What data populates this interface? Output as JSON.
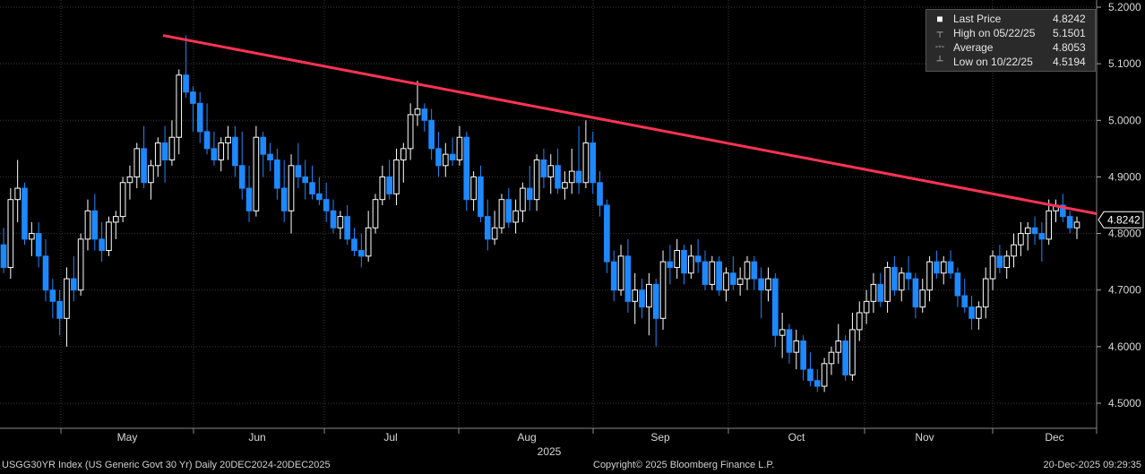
{
  "chart_data": {
    "type": "candlestick",
    "title": "USGG30YR Index (US Generic Govt 30 Yr) Daily 20DEC2024-20DEC2025",
    "ylim": [
      4.45,
      5.2
    ],
    "y_ticks": [
      "4.5000",
      "4.6000",
      "4.7000",
      "4.8000",
      "4.9000",
      "5.0000",
      "5.1000",
      "5.2000"
    ],
    "x_tick_labels": [
      "May",
      "Jun",
      "Jul",
      "Aug",
      "Sep",
      "Oct",
      "Nov",
      "Dec"
    ],
    "year_label": "2025",
    "last_price_marker": "4.8242",
    "legend": [
      {
        "symbol": "square-icon",
        "label": "Last Price",
        "value": "4.8242"
      },
      {
        "symbol": "high-icon",
        "label": "High on 05/22/25",
        "value": "5.1501"
      },
      {
        "symbol": "average-icon",
        "label": "Average",
        "value": "4.8053"
      },
      {
        "symbol": "low-icon",
        "label": "Low on 10/22/25",
        "value": "4.5194"
      }
    ],
    "trendline": {
      "start": {
        "date": "2025-05-22",
        "value": 5.15
      },
      "end": {
        "date": "2025-12-22",
        "value": 4.835
      }
    },
    "colors": {
      "up": "#ffffff",
      "down": "#1e88ff",
      "trendline": "#ff3355",
      "background": "#000000"
    },
    "candles": [
      [
        4.78,
        4.81,
        4.73,
        4.74
      ],
      [
        4.74,
        4.88,
        4.72,
        4.86
      ],
      [
        4.86,
        4.93,
        4.82,
        4.88
      ],
      [
        4.88,
        4.89,
        4.78,
        4.79
      ],
      [
        4.79,
        4.82,
        4.76,
        4.8
      ],
      [
        4.8,
        4.82,
        4.74,
        4.76
      ],
      [
        4.76,
        4.79,
        4.68,
        4.7
      ],
      [
        4.7,
        4.72,
        4.65,
        4.68
      ],
      [
        4.68,
        4.7,
        4.62,
        4.65
      ],
      [
        4.65,
        4.74,
        4.6,
        4.72
      ],
      [
        4.72,
        4.76,
        4.68,
        4.7
      ],
      [
        4.7,
        4.8,
        4.69,
        4.79
      ],
      [
        4.79,
        4.86,
        4.77,
        4.84
      ],
      [
        4.84,
        4.87,
        4.77,
        4.79
      ],
      [
        4.79,
        4.82,
        4.75,
        4.77
      ],
      [
        4.77,
        4.83,
        4.76,
        4.82
      ],
      [
        4.82,
        4.84,
        4.79,
        4.83
      ],
      [
        4.83,
        4.9,
        4.82,
        4.89
      ],
      [
        4.89,
        4.92,
        4.86,
        4.9
      ],
      [
        4.9,
        4.96,
        4.88,
        4.95
      ],
      [
        4.95,
        4.99,
        4.88,
        4.89
      ],
      [
        4.89,
        4.93,
        4.86,
        4.92
      ],
      [
        4.92,
        4.97,
        4.9,
        4.96
      ],
      [
        4.96,
        4.99,
        4.89,
        4.93
      ],
      [
        4.93,
        5.0,
        4.92,
        4.97
      ],
      [
        4.97,
        5.09,
        4.94,
        5.08
      ],
      [
        5.08,
        5.15,
        5.04,
        5.05
      ],
      [
        5.05,
        5.06,
        4.98,
        5.03
      ],
      [
        5.03,
        5.05,
        4.96,
        4.98
      ],
      [
        4.98,
        5.03,
        4.94,
        4.95
      ],
      [
        4.95,
        4.98,
        4.92,
        4.93
      ],
      [
        4.93,
        4.97,
        4.91,
        4.96
      ],
      [
        4.96,
        4.99,
        4.93,
        4.97
      ],
      [
        4.97,
        4.99,
        4.9,
        4.92
      ],
      [
        4.92,
        4.98,
        4.86,
        4.88
      ],
      [
        4.88,
        4.92,
        4.82,
        4.84
      ],
      [
        4.84,
        4.99,
        4.83,
        4.97
      ],
      [
        4.97,
        4.98,
        4.9,
        4.94
      ],
      [
        4.94,
        4.96,
        4.91,
        4.93
      ],
      [
        4.93,
        4.95,
        4.86,
        4.88
      ],
      [
        4.88,
        4.93,
        4.82,
        4.84
      ],
      [
        4.84,
        4.94,
        4.8,
        4.92
      ],
      [
        4.92,
        4.96,
        4.88,
        4.9
      ],
      [
        4.9,
        4.93,
        4.86,
        4.89
      ],
      [
        4.89,
        4.92,
        4.86,
        4.87
      ],
      [
        4.87,
        4.9,
        4.85,
        4.86
      ],
      [
        4.86,
        4.89,
        4.82,
        4.84
      ],
      [
        4.84,
        4.86,
        4.8,
        4.81
      ],
      [
        4.81,
        4.84,
        4.79,
        4.83
      ],
      [
        4.83,
        4.85,
        4.78,
        4.79
      ],
      [
        4.79,
        4.81,
        4.76,
        4.77
      ],
      [
        4.77,
        4.8,
        4.74,
        4.76
      ],
      [
        4.76,
        4.84,
        4.75,
        4.81
      ],
      [
        4.81,
        4.87,
        4.8,
        4.86
      ],
      [
        4.86,
        4.92,
        4.85,
        4.9
      ],
      [
        4.9,
        4.93,
        4.86,
        4.87
      ],
      [
        4.87,
        4.95,
        4.85,
        4.93
      ],
      [
        4.93,
        4.96,
        4.89,
        4.95
      ],
      [
        4.95,
        5.03,
        4.93,
        5.01
      ],
      [
        5.01,
        5.07,
        4.99,
        5.02
      ],
      [
        5.02,
        5.03,
        4.98,
        5.0
      ],
      [
        5.0,
        5.02,
        4.93,
        4.95
      ],
      [
        4.95,
        4.98,
        4.9,
        4.92
      ],
      [
        4.92,
        4.96,
        4.9,
        4.94
      ],
      [
        4.94,
        4.97,
        4.92,
        4.93
      ],
      [
        4.93,
        4.99,
        4.92,
        4.97
      ],
      [
        4.97,
        4.98,
        4.84,
        4.86
      ],
      [
        4.86,
        4.91,
        4.84,
        4.9
      ],
      [
        4.9,
        4.92,
        4.82,
        4.83
      ],
      [
        4.83,
        4.86,
        4.77,
        4.79
      ],
      [
        4.79,
        4.84,
        4.78,
        4.81
      ],
      [
        4.81,
        4.87,
        4.8,
        4.86
      ],
      [
        4.86,
        4.88,
        4.81,
        4.82
      ],
      [
        4.82,
        4.86,
        4.8,
        4.84
      ],
      [
        4.84,
        4.89,
        4.82,
        4.88
      ],
      [
        4.88,
        4.92,
        4.84,
        4.86
      ],
      [
        4.86,
        4.94,
        4.84,
        4.93
      ],
      [
        4.93,
        4.95,
        4.88,
        4.9
      ],
      [
        4.9,
        4.94,
        4.87,
        4.92
      ],
      [
        4.92,
        4.95,
        4.87,
        4.88
      ],
      [
        4.88,
        4.91,
        4.86,
        4.89
      ],
      [
        4.89,
        4.95,
        4.87,
        4.91
      ],
      [
        4.91,
        4.99,
        4.87,
        4.89
      ],
      [
        4.89,
        5.0,
        4.88,
        4.96
      ],
      [
        4.96,
        4.98,
        4.87,
        4.89
      ],
      [
        4.89,
        4.91,
        4.83,
        4.85
      ],
      [
        4.85,
        4.86,
        4.73,
        4.75
      ],
      [
        4.75,
        4.77,
        4.68,
        4.7
      ],
      [
        4.7,
        4.78,
        4.69,
        4.76
      ],
      [
        4.76,
        4.79,
        4.66,
        4.68
      ],
      [
        4.68,
        4.73,
        4.64,
        4.7
      ],
      [
        4.7,
        4.72,
        4.65,
        4.67
      ],
      [
        4.67,
        4.73,
        4.62,
        4.71
      ],
      [
        4.71,
        4.72,
        4.6,
        4.65
      ],
      [
        4.65,
        4.77,
        4.63,
        4.75
      ],
      [
        4.75,
        4.78,
        4.71,
        4.74
      ],
      [
        4.74,
        4.79,
        4.72,
        4.77
      ],
      [
        4.77,
        4.78,
        4.71,
        4.73
      ],
      [
        4.73,
        4.78,
        4.72,
        4.76
      ],
      [
        4.76,
        4.79,
        4.73,
        4.75
      ],
      [
        4.75,
        4.77,
        4.7,
        4.71
      ],
      [
        4.71,
        4.76,
        4.7,
        4.75
      ],
      [
        4.75,
        4.76,
        4.69,
        4.7
      ],
      [
        4.7,
        4.74,
        4.68,
        4.73
      ],
      [
        4.73,
        4.76,
        4.7,
        4.71
      ],
      [
        4.71,
        4.74,
        4.69,
        4.72
      ],
      [
        4.72,
        4.76,
        4.7,
        4.75
      ],
      [
        4.75,
        4.76,
        4.7,
        4.72
      ],
      [
        4.72,
        4.74,
        4.65,
        4.7
      ],
      [
        4.7,
        4.74,
        4.68,
        4.72
      ],
      [
        4.72,
        4.73,
        4.6,
        4.62
      ],
      [
        4.62,
        4.66,
        4.58,
        4.63
      ],
      [
        4.63,
        4.64,
        4.57,
        4.59
      ],
      [
        4.59,
        4.63,
        4.56,
        4.61
      ],
      [
        4.61,
        4.62,
        4.54,
        4.56
      ],
      [
        4.56,
        4.59,
        4.53,
        4.54
      ],
      [
        4.54,
        4.56,
        4.52,
        4.53
      ],
      [
        4.53,
        4.58,
        4.52,
        4.57
      ],
      [
        4.57,
        4.6,
        4.55,
        4.59
      ],
      [
        4.59,
        4.64,
        4.57,
        4.61
      ],
      [
        4.61,
        4.62,
        4.54,
        4.55
      ],
      [
        4.55,
        4.66,
        4.54,
        4.63
      ],
      [
        4.63,
        4.68,
        4.61,
        4.66
      ],
      [
        4.66,
        4.7,
        4.64,
        4.68
      ],
      [
        4.68,
        4.73,
        4.66,
        4.71
      ],
      [
        4.71,
        4.73,
        4.67,
        4.68
      ],
      [
        4.68,
        4.75,
        4.66,
        4.74
      ],
      [
        4.74,
        4.76,
        4.69,
        4.7
      ],
      [
        4.7,
        4.74,
        4.68,
        4.73
      ],
      [
        4.73,
        4.76,
        4.7,
        4.72
      ],
      [
        4.72,
        4.73,
        4.65,
        4.67
      ],
      [
        4.67,
        4.72,
        4.66,
        4.7
      ],
      [
        4.7,
        4.76,
        4.68,
        4.75
      ],
      [
        4.75,
        4.77,
        4.72,
        4.73
      ],
      [
        4.73,
        4.76,
        4.71,
        4.75
      ],
      [
        4.75,
        4.77,
        4.72,
        4.73
      ],
      [
        4.73,
        4.74,
        4.67,
        4.69
      ],
      [
        4.69,
        4.72,
        4.66,
        4.67
      ],
      [
        4.67,
        4.69,
        4.63,
        4.65
      ],
      [
        4.65,
        4.68,
        4.63,
        4.67
      ],
      [
        4.67,
        4.74,
        4.65,
        4.72
      ],
      [
        4.72,
        4.77,
        4.7,
        4.76
      ],
      [
        4.76,
        4.78,
        4.73,
        4.74
      ],
      [
        4.74,
        4.77,
        4.72,
        4.76
      ],
      [
        4.76,
        4.8,
        4.74,
        4.78
      ],
      [
        4.78,
        4.82,
        4.76,
        4.8
      ],
      [
        4.8,
        4.82,
        4.77,
        4.81
      ],
      [
        4.81,
        4.83,
        4.78,
        4.8
      ],
      [
        4.8,
        4.82,
        4.75,
        4.79
      ],
      [
        4.79,
        4.86,
        4.78,
        4.84
      ],
      [
        4.84,
        4.86,
        4.82,
        4.85
      ],
      [
        4.85,
        4.87,
        4.82,
        4.83
      ],
      [
        4.83,
        4.84,
        4.8,
        4.81
      ],
      [
        4.81,
        4.83,
        4.79,
        4.82
      ]
    ]
  },
  "footer": {
    "left": "USGG30YR Index (US Generic Govt 30 Yr) Daily 20DEC2024-20DEC2025",
    "center": "Copyright© 2025 Bloomberg Finance L.P.",
    "right": "20-Dec-2025 09:29:35"
  }
}
